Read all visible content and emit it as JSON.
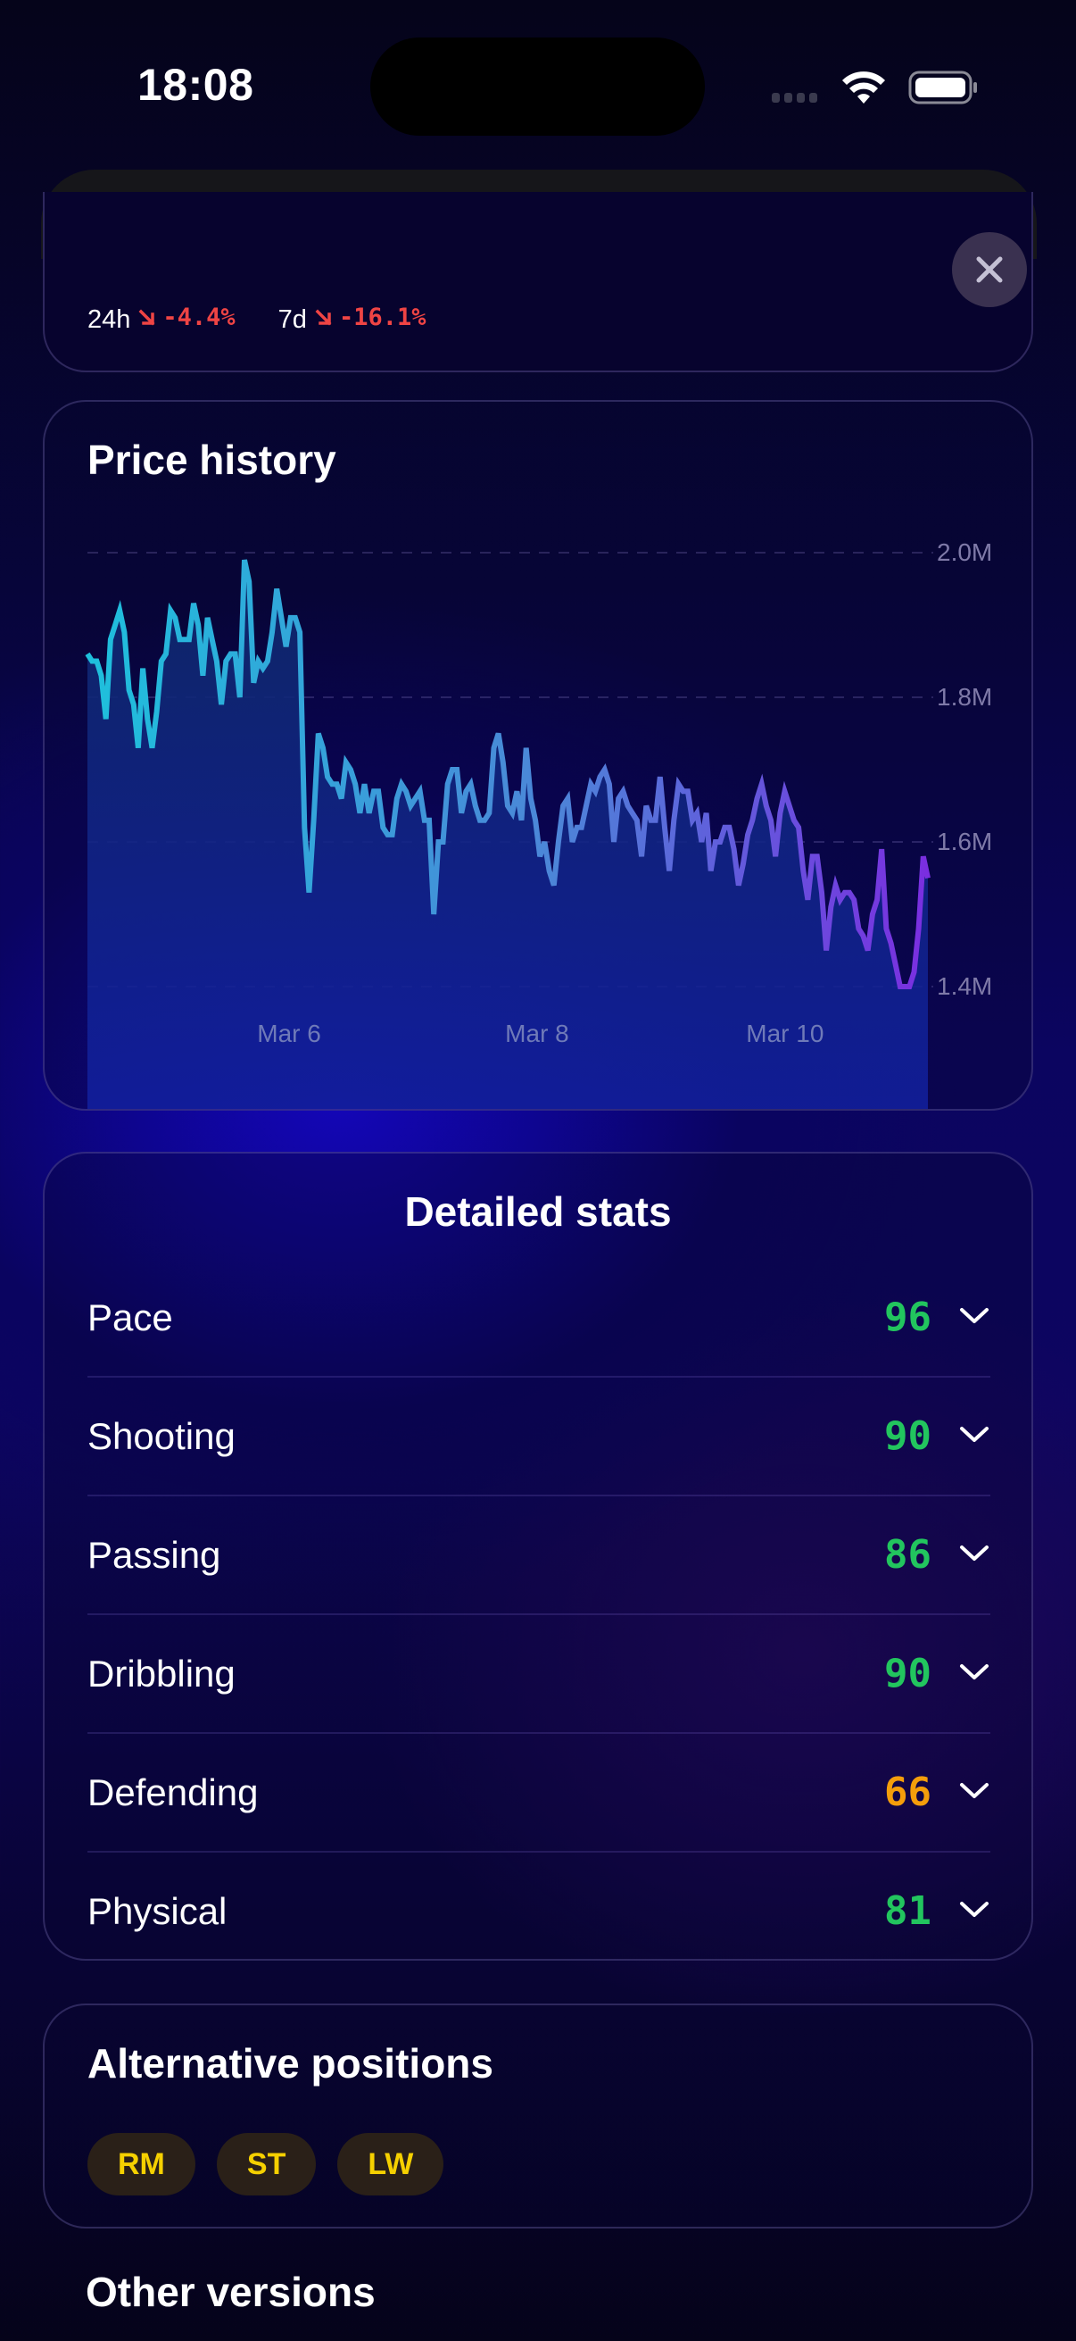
{
  "status_bar": {
    "time": "18:08"
  },
  "header_card": {
    "changes": [
      {
        "period": "24h",
        "direction": "down",
        "value": "-4.4%"
      },
      {
        "period": "7d",
        "direction": "down",
        "value": "-16.1%"
      }
    ],
    "close_label": "Close"
  },
  "price_history": {
    "title": "Price history",
    "y_ticks": [
      "2.0M",
      "1.8M",
      "1.6M",
      "1.4M"
    ],
    "x_ticks": [
      "Mar 6",
      "Mar 8",
      "Mar 10"
    ]
  },
  "detailed_stats": {
    "title": "Detailed stats",
    "rows": [
      {
        "label": "Pace",
        "value": "96",
        "color": "#22c55e"
      },
      {
        "label": "Shooting",
        "value": "90",
        "color": "#22c55e"
      },
      {
        "label": "Passing",
        "value": "86",
        "color": "#22c55e"
      },
      {
        "label": "Dribbling",
        "value": "90",
        "color": "#22c55e"
      },
      {
        "label": "Defending",
        "value": "66",
        "color": "#f59e0b"
      },
      {
        "label": "Physical",
        "value": "81",
        "color": "#22c55e"
      }
    ]
  },
  "alternative_positions": {
    "title": "Alternative positions",
    "chips": [
      "RM",
      "ST",
      "LW"
    ]
  },
  "other_versions": {
    "title": "Other versions"
  },
  "colors": {
    "accent_yellow": "#f5d000",
    "negative": "#ef4444",
    "positive": "#22c55e",
    "warning": "#f59e0b",
    "line_start": "#1ec0dc",
    "line_end": "#7a2ee0"
  },
  "chart_data": {
    "type": "area",
    "title": "Price history",
    "xlabel": "",
    "ylabel": "",
    "ylim": [
      1.31,
      2.05
    ],
    "y_ticks": [
      1.4,
      1.6,
      1.8,
      2.0
    ],
    "y_tick_labels": [
      "1.4M",
      "1.6M",
      "1.8M",
      "2.0M"
    ],
    "x_tick_labels": [
      "Mar 6",
      "Mar 8",
      "Mar 10"
    ],
    "x_tick_positions": [
      0.24,
      0.535,
      0.83
    ],
    "grid": true,
    "legend": "none",
    "unit": "M coins",
    "series": [
      {
        "name": "Price",
        "values": [
          1.86,
          1.85,
          1.85,
          1.83,
          1.77,
          1.88,
          1.9,
          1.92,
          1.89,
          1.81,
          1.79,
          1.73,
          1.84,
          1.77,
          1.73,
          1.78,
          1.85,
          1.86,
          1.92,
          1.91,
          1.88,
          1.88,
          1.88,
          1.93,
          1.9,
          1.83,
          1.91,
          1.88,
          1.85,
          1.79,
          1.85,
          1.86,
          1.86,
          1.8,
          1.99,
          1.96,
          1.82,
          1.85,
          1.84,
          1.85,
          1.89,
          1.95,
          1.91,
          1.87,
          1.91,
          1.91,
          1.89,
          1.62,
          1.53,
          1.63,
          1.75,
          1.73,
          1.69,
          1.68,
          1.68,
          1.66,
          1.71,
          1.7,
          1.68,
          1.64,
          1.68,
          1.64,
          1.67,
          1.67,
          1.62,
          1.61,
          1.61,
          1.66,
          1.68,
          1.67,
          1.65,
          1.66,
          1.67,
          1.63,
          1.63,
          1.5,
          1.6,
          1.6,
          1.68,
          1.7,
          1.7,
          1.64,
          1.67,
          1.68,
          1.65,
          1.63,
          1.63,
          1.64,
          1.73,
          1.75,
          1.71,
          1.65,
          1.64,
          1.67,
          1.63,
          1.73,
          1.66,
          1.63,
          1.58,
          1.6,
          1.56,
          1.54,
          1.6,
          1.65,
          1.66,
          1.6,
          1.62,
          1.62,
          1.65,
          1.68,
          1.67,
          1.69,
          1.7,
          1.68,
          1.6,
          1.66,
          1.67,
          1.65,
          1.64,
          1.63,
          1.58,
          1.65,
          1.63,
          1.63,
          1.69,
          1.62,
          1.56,
          1.63,
          1.68,
          1.67,
          1.67,
          1.63,
          1.64,
          1.6,
          1.64,
          1.56,
          1.6,
          1.6,
          1.62,
          1.62,
          1.59,
          1.54,
          1.57,
          1.61,
          1.63,
          1.66,
          1.68,
          1.65,
          1.63,
          1.58,
          1.64,
          1.67,
          1.65,
          1.63,
          1.62,
          1.56,
          1.52,
          1.58,
          1.58,
          1.53,
          1.45,
          1.51,
          1.54,
          1.52,
          1.53,
          1.53,
          1.52,
          1.48,
          1.47,
          1.45,
          1.5,
          1.52,
          1.59,
          1.48,
          1.46,
          1.43,
          1.4,
          1.4,
          1.4,
          1.42,
          1.48,
          1.58,
          1.55
        ]
      }
    ]
  }
}
